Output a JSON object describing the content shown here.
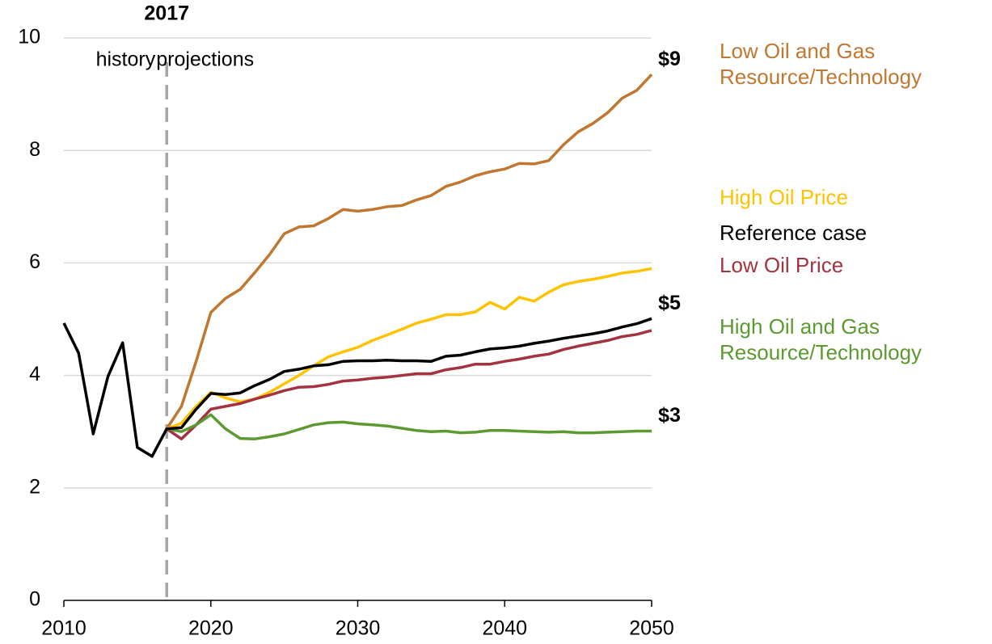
{
  "chart_data": {
    "type": "line",
    "x": [
      2010,
      2011,
      2012,
      2013,
      2014,
      2015,
      2016,
      2017,
      2018,
      2019,
      2020,
      2021,
      2022,
      2023,
      2024,
      2025,
      2026,
      2027,
      2028,
      2029,
      2030,
      2031,
      2032,
      2033,
      2034,
      2035,
      2036,
      2037,
      2038,
      2039,
      2040,
      2041,
      2042,
      2043,
      2044,
      2045,
      2046,
      2047,
      2048,
      2049,
      2050
    ],
    "xlim": [
      2010,
      2050
    ],
    "xticks": [
      2010,
      2020,
      2030,
      2040,
      2050
    ],
    "ylim": [
      0,
      10
    ],
    "yticks": [
      0,
      2,
      4,
      6,
      8,
      10
    ],
    "grid": true,
    "projection_start": 2017,
    "history_label": "history",
    "projections_label": "projections",
    "series": [
      {
        "name": "Low Oil and Gas Resource/Technology",
        "color": "#c0772f",
        "values": [
          null,
          null,
          null,
          null,
          null,
          null,
          null,
          3.05,
          3.45,
          4.25,
          5.12,
          5.37,
          5.53,
          5.83,
          6.15,
          6.52,
          6.64,
          6.66,
          6.79,
          6.95,
          6.92,
          6.95,
          7.0,
          7.02,
          7.12,
          7.2,
          7.36,
          7.44,
          7.55,
          7.62,
          7.67,
          7.77,
          7.76,
          7.82,
          8.1,
          8.33,
          8.48,
          8.67,
          8.93,
          9.07,
          9.35
        ],
        "value_labels": [
          null,
          null,
          null,
          null,
          null,
          null,
          null,
          null,
          null,
          null,
          null,
          null,
          null,
          null,
          null,
          null,
          null,
          null,
          null,
          null,
          null,
          null,
          null,
          null,
          null,
          null,
          null,
          null,
          null,
          null,
          null,
          null,
          null,
          null,
          null,
          null,
          null,
          null,
          null,
          null,
          "$9"
        ]
      },
      {
        "name": "High Oil Price",
        "color": "#fdc300",
        "values": [
          null,
          null,
          null,
          null,
          null,
          null,
          null,
          3.05,
          3.15,
          3.45,
          3.7,
          3.6,
          3.53,
          3.58,
          3.7,
          3.85,
          4.0,
          4.17,
          4.33,
          4.42,
          4.5,
          4.62,
          4.72,
          4.82,
          4.93,
          5.0,
          5.08,
          5.08,
          5.13,
          5.3,
          5.18,
          5.39,
          5.32,
          5.48,
          5.61,
          5.67,
          5.71,
          5.76,
          5.82,
          5.85,
          5.9
        ]
      },
      {
        "name": "Reference case",
        "color": "#000000",
        "values": [
          4.93,
          4.4,
          2.96,
          3.98,
          4.58,
          2.72,
          2.56,
          3.05,
          3.07,
          3.4,
          3.68,
          3.66,
          3.69,
          3.82,
          3.93,
          4.07,
          4.11,
          4.17,
          4.19,
          4.25,
          4.26,
          4.26,
          4.27,
          4.26,
          4.26,
          4.25,
          4.34,
          4.36,
          4.42,
          4.47,
          4.49,
          4.52,
          4.57,
          4.61,
          4.66,
          4.7,
          4.74,
          4.79,
          4.86,
          4.92,
          5.01
        ],
        "value_labels": [
          null,
          null,
          null,
          null,
          null,
          null,
          null,
          null,
          null,
          null,
          null,
          null,
          null,
          null,
          null,
          null,
          null,
          null,
          null,
          null,
          null,
          null,
          null,
          null,
          null,
          null,
          null,
          null,
          null,
          null,
          null,
          null,
          null,
          null,
          null,
          null,
          null,
          null,
          null,
          null,
          "$5"
        ]
      },
      {
        "name": "Low Oil Price",
        "color": "#a33340",
        "values": [
          null,
          null,
          null,
          null,
          null,
          null,
          null,
          3.05,
          2.87,
          3.12,
          3.4,
          3.45,
          3.5,
          3.58,
          3.65,
          3.73,
          3.79,
          3.8,
          3.84,
          3.9,
          3.92,
          3.95,
          3.97,
          4.0,
          4.03,
          4.03,
          4.1,
          4.14,
          4.2,
          4.2,
          4.25,
          4.29,
          4.34,
          4.38,
          4.46,
          4.52,
          4.57,
          4.62,
          4.69,
          4.73,
          4.8
        ]
      },
      {
        "name": "High Oil and Gas Resource/Technology",
        "color": "#5b9a31",
        "values": [
          null,
          null,
          null,
          null,
          null,
          null,
          null,
          3.05,
          3.0,
          3.12,
          3.3,
          3.05,
          2.88,
          2.87,
          2.91,
          2.96,
          3.04,
          3.12,
          3.16,
          3.17,
          3.14,
          3.12,
          3.1,
          3.06,
          3.02,
          3.0,
          3.01,
          2.98,
          2.99,
          3.02,
          3.02,
          3.01,
          3.0,
          2.99,
          3.0,
          2.98,
          2.98,
          2.99,
          3.0,
          3.01,
          3.01
        ],
        "value_labels": [
          null,
          null,
          null,
          null,
          null,
          null,
          null,
          null,
          null,
          null,
          null,
          null,
          null,
          null,
          null,
          null,
          null,
          null,
          null,
          null,
          null,
          null,
          null,
          null,
          null,
          null,
          null,
          null,
          null,
          null,
          null,
          null,
          null,
          null,
          null,
          null,
          null,
          null,
          null,
          null,
          "$3"
        ]
      }
    ]
  }
}
